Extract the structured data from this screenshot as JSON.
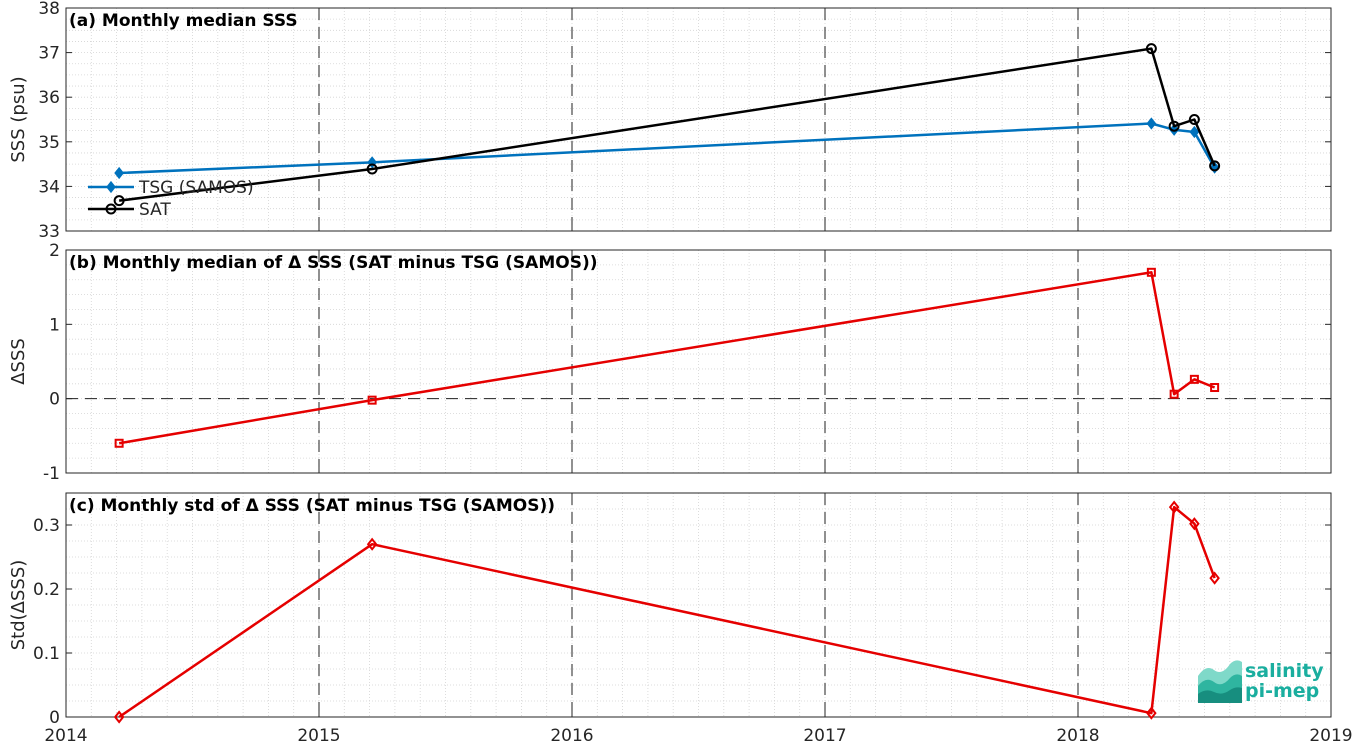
{
  "chart_data": [
    {
      "type": "line",
      "title": "(a) Monthly median SSS",
      "xlabel": "",
      "ylabel": "SSS (psu)",
      "xlim": [
        2014,
        2019
      ],
      "ylim": [
        33,
        38
      ],
      "yticks": [
        "33",
        "34",
        "35",
        "36",
        "37",
        "38"
      ],
      "grid": "minor-dotted",
      "legend_position": "bottom-left",
      "series": [
        {
          "name": "TSG (SAMOS)",
          "color": "#0072BD",
          "marker": "filled-diamond",
          "x": [
            2014.21,
            2015.21,
            2018.29,
            2018.38,
            2018.46,
            2018.54
          ],
          "values": [
            34.3,
            34.54,
            35.41,
            35.27,
            35.22,
            34.42
          ]
        },
        {
          "name": "SAT",
          "color": "#000000",
          "marker": "circle",
          "x": [
            2014.21,
            2015.21,
            2018.29,
            2018.38,
            2018.46,
            2018.54
          ],
          "values": [
            33.68,
            34.39,
            37.09,
            35.35,
            35.5,
            34.46
          ]
        }
      ]
    },
    {
      "type": "line",
      "title": "(b) Monthly median of Δ SSS (SAT minus TSG (SAMOS))",
      "xlabel": "",
      "ylabel": "ΔSSS",
      "xlim": [
        2014,
        2019
      ],
      "ylim": [
        -1,
        2
      ],
      "yticks": [
        "-1",
        "0",
        "1",
        "2"
      ],
      "zero_line": true,
      "series": [
        {
          "name": "",
          "color": "#E50000",
          "marker": "square",
          "x": [
            2014.21,
            2015.21,
            2018.29,
            2018.38,
            2018.46,
            2018.54
          ],
          "values": [
            -0.6,
            -0.02,
            1.7,
            0.06,
            0.26,
            0.15
          ]
        }
      ]
    },
    {
      "type": "line",
      "title": "(c) Monthly std of Δ SSS (SAT minus TSG (SAMOS))",
      "xlabel": "",
      "ylabel": "Std(ΔSSS)",
      "xlim": [
        2014,
        2019
      ],
      "ylim": [
        0,
        0.35
      ],
      "yticks": [
        "0",
        "0.1",
        "0.2",
        "0.3"
      ],
      "xticks": [
        "2014",
        "2015",
        "2016",
        "2017",
        "2018",
        "2019"
      ],
      "series": [
        {
          "name": "",
          "color": "#E50000",
          "marker": "diamond",
          "x": [
            2014.21,
            2015.21,
            2018.29,
            2018.38,
            2018.46,
            2018.54
          ],
          "values": [
            0.0,
            0.27,
            0.006,
            0.328,
            0.302,
            0.217
          ]
        }
      ]
    }
  ],
  "logo": {
    "line1": "salinity",
    "line2": "pi-mep",
    "color": "#1AAE9F"
  }
}
